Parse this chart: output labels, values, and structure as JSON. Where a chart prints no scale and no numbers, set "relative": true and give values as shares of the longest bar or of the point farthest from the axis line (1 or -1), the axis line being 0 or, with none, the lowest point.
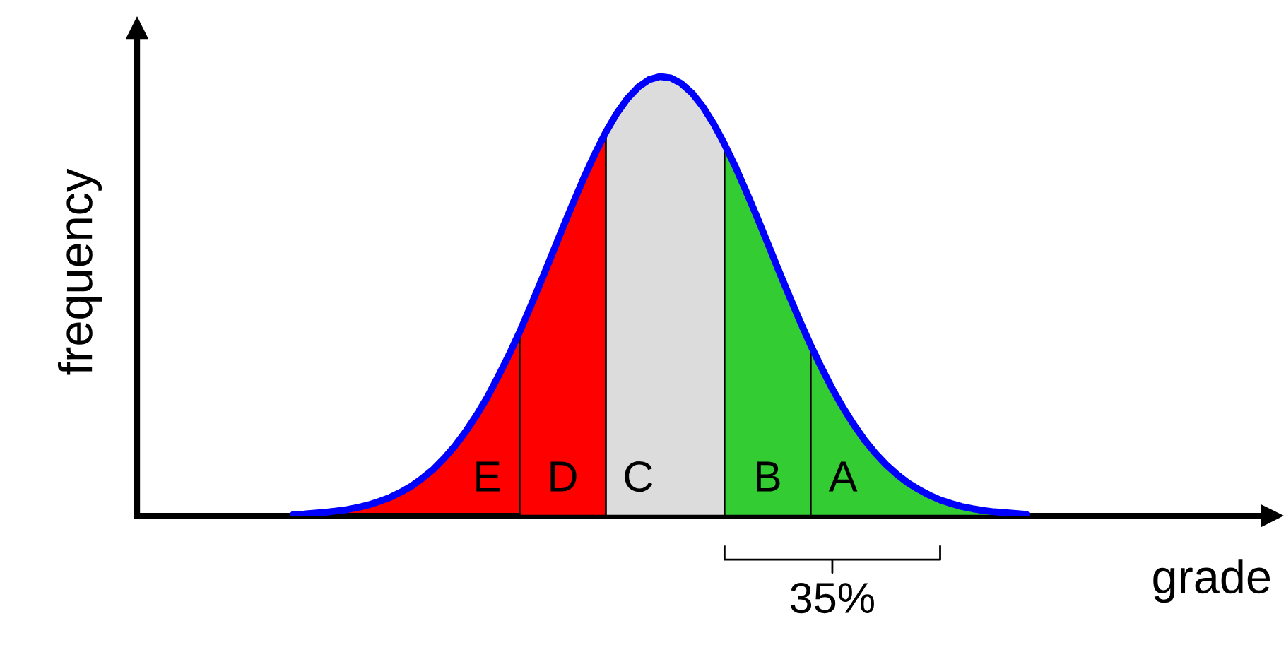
{
  "chart_data": {
    "type": "area",
    "relative": true,
    "xlabel": "grade",
    "ylabel": "frequency",
    "annotations": [
      "35%"
    ],
    "categories": [
      null,
      null,
      null,
      null,
      null,
      null,
      null,
      null,
      null,
      null,
      null,
      null,
      null,
      null,
      null,
      null,
      null,
      null,
      null,
      null,
      null,
      null,
      null,
      null,
      null,
      null,
      null,
      null,
      null,
      null,
      null,
      null,
      null,
      null,
      null,
      null,
      null,
      null,
      null,
      null,
      null,
      null,
      null,
      null,
      null,
      null,
      null,
      null,
      null,
      null,
      null,
      null,
      null,
      null,
      null,
      null,
      null,
      null,
      null,
      null,
      null,
      null,
      null,
      null,
      null,
      null,
      null,
      null,
      null
    ],
    "series": [
      {
        "name": "E",
        "color": "#ff0000",
        "values": [
          0.003,
          0.004,
          0.006,
          0.008,
          0.011,
          0.014,
          0.019,
          0.025,
          0.033,
          0.042,
          0.054,
          0.068,
          0.086,
          0.106,
          0.131,
          0.159,
          0.192,
          0.229,
          0.27,
          0.317,
          0.366,
          0.419,
          null,
          null,
          null,
          null,
          null,
          null,
          null,
          null,
          null,
          null,
          null,
          null,
          null,
          null,
          null,
          null,
          null,
          null,
          null,
          null,
          null,
          null,
          null,
          null,
          null,
          null,
          null,
          null,
          null,
          null,
          null,
          null,
          null,
          null,
          null,
          null,
          null,
          null,
          null,
          null,
          null,
          null,
          null,
          null,
          null,
          null,
          null
        ]
      },
      {
        "name": "D",
        "color": "#ff0000",
        "values": [
          null,
          null,
          null,
          null,
          null,
          null,
          null,
          null,
          null,
          null,
          null,
          null,
          null,
          null,
          null,
          null,
          null,
          null,
          null,
          null,
          null,
          0.419,
          0.476,
          0.535,
          0.595,
          0.656,
          0.715,
          0.772,
          0.825,
          0.874,
          null,
          null,
          null,
          null,
          null,
          null,
          null,
          null,
          null,
          null,
          null,
          null,
          null,
          null,
          null,
          null,
          null,
          null,
          null,
          null,
          null,
          null,
          null,
          null,
          null,
          null,
          null,
          null,
          null,
          null,
          null,
          null,
          null,
          null,
          null,
          null,
          null,
          null,
          null
        ]
      },
      {
        "name": "C",
        "color": "#dcdcdc",
        "values": [
          null,
          null,
          null,
          null,
          null,
          null,
          null,
          null,
          null,
          null,
          null,
          null,
          null,
          null,
          null,
          null,
          null,
          null,
          null,
          null,
          null,
          null,
          null,
          null,
          null,
          null,
          null,
          null,
          null,
          0.874,
          0.916,
          0.95,
          0.976,
          0.993,
          1,
          0.997,
          0.984,
          0.962,
          0.931,
          0.892,
          0.846,
          null,
          null,
          null,
          null,
          null,
          null,
          null,
          null,
          null,
          null,
          null,
          null,
          null,
          null,
          null,
          null,
          null,
          null,
          null,
          null,
          null,
          null,
          null,
          null,
          null,
          null,
          null,
          null
        ]
      },
      {
        "name": "B",
        "color": "#33cc33",
        "values": [
          null,
          null,
          null,
          null,
          null,
          null,
          null,
          null,
          null,
          null,
          null,
          null,
          null,
          null,
          null,
          null,
          null,
          null,
          null,
          null,
          null,
          null,
          null,
          null,
          null,
          null,
          null,
          null,
          null,
          null,
          null,
          null,
          null,
          null,
          null,
          null,
          null,
          null,
          null,
          null,
          0.846,
          0.795,
          0.739,
          0.681,
          0.621,
          0.56,
          0.501,
          0.443,
          0.388,
          null,
          null,
          null,
          null,
          null,
          null,
          null,
          null,
          null,
          null,
          null,
          null,
          null,
          null,
          null,
          null,
          null,
          null,
          null,
          null
        ]
      },
      {
        "name": "A",
        "color": "#33cc33",
        "values": [
          null,
          null,
          null,
          null,
          null,
          null,
          null,
          null,
          null,
          null,
          null,
          null,
          null,
          null,
          null,
          null,
          null,
          null,
          null,
          null,
          null,
          null,
          null,
          null,
          null,
          null,
          null,
          null,
          null,
          null,
          null,
          null,
          null,
          null,
          null,
          null,
          null,
          null,
          null,
          null,
          null,
          null,
          null,
          null,
          null,
          null,
          null,
          null,
          0.388,
          0.337,
          0.289,
          0.246,
          0.207,
          0.172,
          0.142,
          0.116,
          0.094,
          0.075,
          0.06,
          0.047,
          0.036,
          0.028,
          0.021,
          0.016,
          0.012,
          0.009,
          0.007,
          0.005,
          0.003
        ]
      },
      {
        "type": "line",
        "color": "#0000ff",
        "values": [
          0.003,
          0.004,
          0.006,
          0.008,
          0.011,
          0.014,
          0.019,
          0.025,
          0.033,
          0.042,
          0.054,
          0.068,
          0.086,
          0.106,
          0.131,
          0.159,
          0.192,
          0.229,
          0.27,
          0.317,
          0.366,
          0.419,
          0.476,
          0.535,
          0.595,
          0.656,
          0.715,
          0.772,
          0.825,
          0.874,
          0.916,
          0.95,
          0.976,
          0.993,
          1,
          0.997,
          0.984,
          0.962,
          0.931,
          0.892,
          0.846,
          0.795,
          0.739,
          0.681,
          0.621,
          0.56,
          0.501,
          0.443,
          0.388,
          0.337,
          0.289,
          0.246,
          0.207,
          0.172,
          0.142,
          0.116,
          0.094,
          0.075,
          0.06,
          0.047,
          0.036,
          0.028,
          0.021,
          0.016,
          0.012,
          0.009,
          0.007,
          0.005,
          0.003
        ]
      }
    ]
  }
}
